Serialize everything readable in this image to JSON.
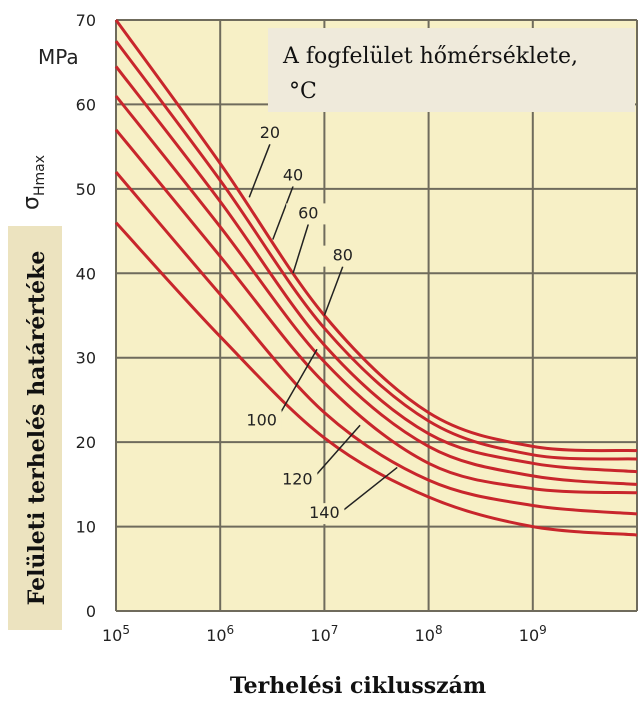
{
  "chart_data": {
    "type": "line",
    "y_unit": "MPa",
    "y_symbol": "σ",
    "y_symbol_sub": "Hmax",
    "ylabel": "Felületi terhelés határértéke",
    "xlabel": "Terhelési ciklusszám",
    "legend_title_line1": "A fogfelület hőmérséklete,",
    "legend_title_line2": "°C",
    "x_scale": "log",
    "xlim": [
      100000,
      10000000000
    ],
    "ylim": [
      0,
      70
    ],
    "grid": true,
    "x_ticks": [
      {
        "value": 100000,
        "base": "10",
        "exp": "5"
      },
      {
        "value": 1000000,
        "base": "10",
        "exp": "6"
      },
      {
        "value": 10000000,
        "base": "10",
        "exp": "7"
      },
      {
        "value": 100000000,
        "base": "10",
        "exp": "8"
      },
      {
        "value": 1000000000,
        "base": "10",
        "exp": "9"
      }
    ],
    "y_ticks": [
      0,
      10,
      20,
      30,
      40,
      50,
      60,
      70
    ],
    "series": [
      {
        "name": "20",
        "x": [
          100000,
          1000000,
          10000000,
          100000000,
          1000000000,
          10000000000
        ],
        "y": [
          70,
          53,
          35,
          23.5,
          19.5,
          19
        ]
      },
      {
        "name": "40",
        "x": [
          100000,
          1000000,
          10000000,
          100000000,
          1000000000,
          10000000000
        ],
        "y": [
          67.5,
          51,
          33.5,
          22.5,
          18.5,
          18
        ]
      },
      {
        "name": "60",
        "x": [
          100000,
          1000000,
          10000000,
          100000000,
          1000000000,
          10000000000
        ],
        "y": [
          64.5,
          48.5,
          31.5,
          21,
          17.5,
          16.5
        ]
      },
      {
        "name": "80",
        "x": [
          100000,
          1000000,
          10000000,
          100000000,
          1000000000,
          10000000000
        ],
        "y": [
          61,
          45.5,
          29.5,
          19.5,
          16,
          15
        ]
      },
      {
        "name": "100",
        "x": [
          100000,
          1000000,
          10000000,
          100000000,
          1000000000,
          10000000000
        ],
        "y": [
          57,
          42,
          27,
          17.5,
          14.5,
          14
        ]
      },
      {
        "name": "120",
        "x": [
          100000,
          1000000,
          10000000,
          100000000,
          1000000000,
          10000000000
        ],
        "y": [
          52,
          37.5,
          23.5,
          15.5,
          12.5,
          11.5
        ]
      },
      {
        "name": "140",
        "x": [
          100000,
          1000000,
          10000000,
          100000000,
          1000000000,
          10000000000
        ],
        "y": [
          46,
          32.5,
          20.5,
          13.5,
          10,
          9
        ]
      }
    ],
    "curve_labels": [
      {
        "text": "20",
        "label_x": 3000000,
        "label_y": 56,
        "target_x": 1900000,
        "target_y": 49
      },
      {
        "text": "40",
        "label_x": 5000000,
        "label_y": 51,
        "target_x": 3200000,
        "target_y": 44
      },
      {
        "text": "60",
        "label_x": 7000000,
        "label_y": 46.5,
        "target_x": 5000000,
        "target_y": 40
      },
      {
        "text": "80",
        "label_x": 15000000,
        "label_y": 41.5,
        "target_x": 10000000,
        "target_y": 35
      },
      {
        "text": "100",
        "label_x": 2500000,
        "label_y": 22,
        "target_x": 8500000,
        "target_y": 31
      },
      {
        "text": "120",
        "label_x": 5500000,
        "label_y": 15,
        "target_x": 22000000,
        "target_y": 22
      },
      {
        "text": "140",
        "label_x": 10000000,
        "label_y": 11,
        "target_x": 50000000,
        "target_y": 17
      }
    ],
    "colors": {
      "plot_background": "#f7f0c6",
      "grid": "#6f6b5c",
      "curve": "#c8262c",
      "legend_box": "#efeadb",
      "ylabel_box": "#ece3bf"
    }
  }
}
